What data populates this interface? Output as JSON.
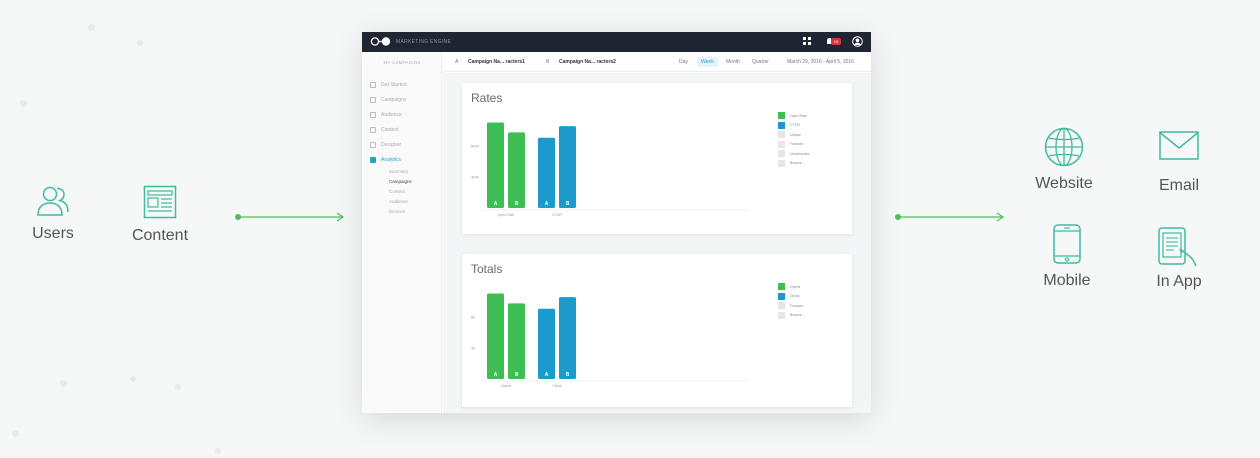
{
  "inputs": [
    {
      "label": "Users",
      "icon": "users-icon"
    },
    {
      "label": "Content",
      "icon": "content-icon"
    }
  ],
  "outputs": [
    {
      "label": "Website",
      "icon": "globe-icon"
    },
    {
      "label": "Email",
      "icon": "envelope-icon"
    },
    {
      "label": "Mobile",
      "icon": "mobile-phone-icon"
    },
    {
      "label": "In App",
      "icon": "in-app-icon"
    }
  ],
  "colors": {
    "accent": "#4cc05a",
    "green": "#3dbd54",
    "blue": "#1b9bcb",
    "topbar": "#1f2532",
    "badge": "#d9343a"
  },
  "app": {
    "brand": "MARKETING ENGINE",
    "notification_count": "10",
    "sidebar_header": "MY CAMPAIGNS",
    "sidebar_items": [
      "Get Started",
      "Campaigns",
      "Audience",
      "Content",
      "Designer",
      "Analytics"
    ],
    "sidebar_subitems": [
      "Summary",
      "Campaigns",
      "Content",
      "Audience",
      "Devices"
    ],
    "campaign_a_tag": "A",
    "campaign_a": "Campaign Na... racters1",
    "campaign_b_tag": "B",
    "campaign_b": "Campaign Na... racters2",
    "ranges": [
      "Day",
      "Week",
      "Month",
      "Quarter"
    ],
    "active_range": "Week",
    "date_range": "March 29, 2016 - April 5, 2016"
  },
  "chart_data": [
    {
      "type": "bar",
      "title": "Rates",
      "categories": [
        "Open Rate",
        "CTOR"
      ],
      "series": [
        {
          "name": "Open Rate",
          "color": "#3dbd54",
          "values": [
            95,
            84
          ]
        },
        {
          "name": "CTOR",
          "color": "#1b9bcb",
          "values": [
            78,
            91
          ]
        }
      ],
      "bar_labels": [
        "A",
        "B",
        "A",
        "B"
      ],
      "ytick_labels": [
        "60%",
        "30%"
      ],
      "legend": [
        "Open Rate",
        "CTOR",
        "Unique",
        "Forward",
        "Unsubscribe",
        "Bounce"
      ]
    },
    {
      "type": "bar",
      "title": "Totals",
      "categories": [
        "Opens",
        "Clicks"
      ],
      "series": [
        {
          "name": "Opens",
          "color": "#3dbd54",
          "values": [
            95,
            84
          ]
        },
        {
          "name": "Clicks",
          "color": "#1b9bcb",
          "values": [
            78,
            91
          ]
        }
      ],
      "bar_labels": [
        "A",
        "B",
        "A",
        "B"
      ],
      "ytick_labels": [
        "6k",
        "4k"
      ],
      "legend": [
        "Opens",
        "Clicks",
        "Forward",
        "Bounce"
      ]
    }
  ]
}
